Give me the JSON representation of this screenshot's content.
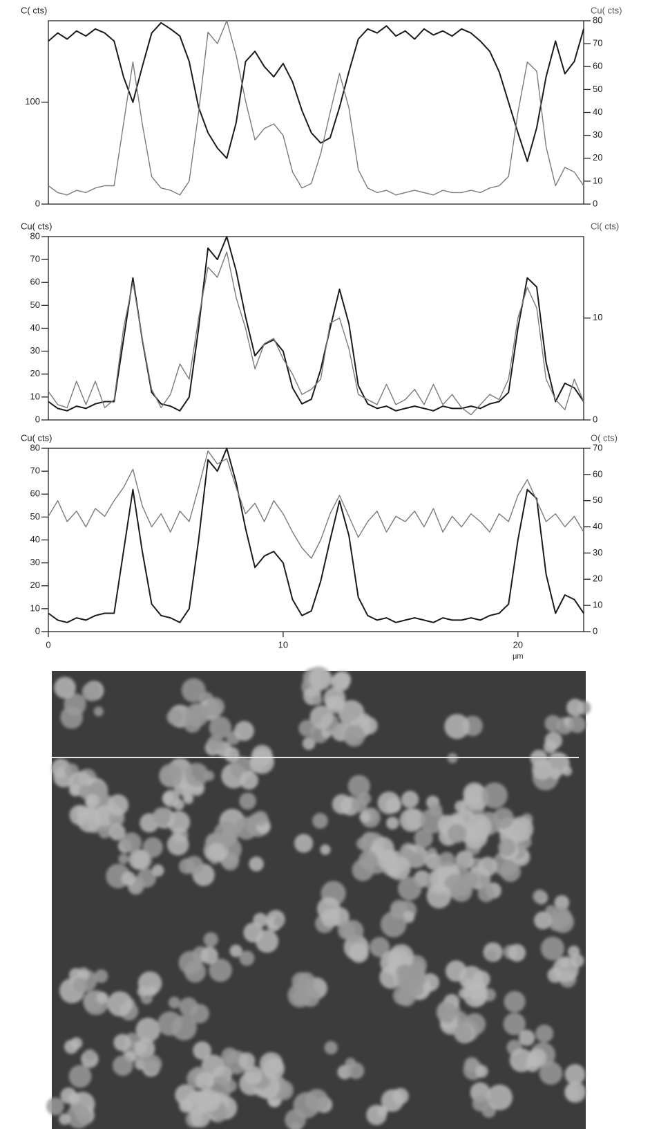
{
  "chart_data": [
    {
      "type": "line",
      "ylabel": "C( cts)",
      "y2label": "Cu( cts)",
      "x": [
        0,
        0.4,
        0.8,
        1.2,
        1.6,
        2.0,
        2.4,
        2.8,
        3.2,
        3.6,
        4.0,
        4.4,
        4.8,
        5.2,
        5.6,
        6.0,
        6.4,
        6.8,
        7.2,
        7.6,
        8.0,
        8.4,
        8.8,
        9.2,
        9.6,
        10.0,
        10.4,
        10.8,
        11.2,
        11.6,
        12.0,
        12.4,
        12.8,
        13.2,
        13.6,
        14.0,
        14.4,
        14.8,
        15.2,
        15.6,
        16.0,
        16.4,
        16.8,
        17.2,
        17.6,
        18.0,
        18.4,
        18.8,
        19.2,
        19.6,
        20.0,
        20.4,
        20.8,
        21.2,
        21.6,
        22.0,
        22.4,
        22.8
      ],
      "xlim": [
        0,
        22.8
      ],
      "ylim": [
        0,
        180
      ],
      "yticks": [
        0,
        100
      ],
      "y2lim": [
        0,
        80
      ],
      "y2ticks": [
        0,
        10,
        20,
        30,
        40,
        50,
        60,
        70,
        80
      ],
      "series": [
        {
          "color": "#1a1a1a",
          "values": [
            160,
            168,
            162,
            170,
            165,
            172,
            168,
            160,
            125,
            100,
            135,
            168,
            178,
            172,
            165,
            140,
            95,
            70,
            55,
            45,
            80,
            140,
            150,
            135,
            125,
            138,
            120,
            92,
            70,
            60,
            65,
            95,
            130,
            162,
            172,
            168,
            175,
            165,
            170,
            162,
            172,
            166,
            170,
            165,
            172,
            168,
            160,
            150,
            130,
            100,
            70,
            42,
            75,
            125,
            160,
            128,
            140,
            172
          ]
        },
        {
          "color": "#7a7a7a",
          "axis": "y2",
          "values": [
            8,
            5,
            4,
            6,
            5,
            7,
            8,
            8,
            35,
            62,
            35,
            12,
            7,
            6,
            4,
            10,
            40,
            75,
            70,
            80,
            65,
            45,
            28,
            33,
            35,
            30,
            14,
            7,
            9,
            22,
            40,
            57,
            42,
            15,
            7,
            5,
            6,
            4,
            5,
            6,
            5,
            4,
            6,
            5,
            5,
            6,
            5,
            7,
            8,
            12,
            40,
            62,
            58,
            25,
            8,
            16,
            14,
            8
          ]
        }
      ]
    },
    {
      "type": "line",
      "ylabel": "Cu( cts)",
      "y2label": "Cl( cts)",
      "x": [
        0,
        0.4,
        0.8,
        1.2,
        1.6,
        2.0,
        2.4,
        2.8,
        3.2,
        3.6,
        4.0,
        4.4,
        4.8,
        5.2,
        5.6,
        6.0,
        6.4,
        6.8,
        7.2,
        7.6,
        8.0,
        8.4,
        8.8,
        9.2,
        9.6,
        10.0,
        10.4,
        10.8,
        11.2,
        11.6,
        12.0,
        12.4,
        12.8,
        13.2,
        13.6,
        14.0,
        14.4,
        14.8,
        15.2,
        15.6,
        16.0,
        16.4,
        16.8,
        17.2,
        17.6,
        18.0,
        18.4,
        18.8,
        19.2,
        19.6,
        20.0,
        20.4,
        20.8,
        21.2,
        21.6,
        22.0,
        22.4,
        22.8
      ],
      "xlim": [
        0,
        22.8
      ],
      "ylim": [
        0,
        80
      ],
      "yticks": [
        0,
        10,
        20,
        30,
        40,
        50,
        60,
        70,
        80
      ],
      "y2lim": [
        0,
        18
      ],
      "y2ticks": [
        0,
        10
      ],
      "series": [
        {
          "color": "#1a1a1a",
          "values": [
            8,
            5,
            4,
            6,
            5,
            7,
            8,
            8,
            35,
            62,
            35,
            12,
            7,
            6,
            4,
            10,
            40,
            75,
            70,
            80,
            65,
            45,
            28,
            33,
            35,
            30,
            14,
            7,
            9,
            22,
            40,
            57,
            42,
            15,
            7,
            5,
            6,
            4,
            5,
            6,
            5,
            4,
            6,
            5,
            5,
            6,
            5,
            7,
            8,
            12,
            40,
            62,
            58,
            25,
            8,
            16,
            14,
            8
          ]
        },
        {
          "color": "#7a7a7a",
          "axis": "y2",
          "values": [
            2.8,
            1.5,
            1.2,
            3.8,
            1.5,
            3.8,
            1.2,
            2,
            9,
            13.5,
            8,
            3,
            1.2,
            2.5,
            5.5,
            4,
            10,
            15,
            14,
            16.5,
            12,
            9,
            5,
            7.5,
            8,
            6,
            4.5,
            2.5,
            3,
            4,
            9.5,
            10,
            7,
            2.5,
            2,
            1.5,
            3.5,
            1.5,
            2,
            3,
            1.5,
            3.5,
            1.5,
            2.5,
            1.2,
            0.5,
            1.5,
            2.5,
            2,
            4,
            10,
            13,
            11,
            4,
            2,
            1,
            4,
            1.8
          ]
        }
      ]
    },
    {
      "type": "line",
      "ylabel": "Cu( cts)",
      "y2label": "O( cts)",
      "xlabel": "µm",
      "x": [
        0,
        0.4,
        0.8,
        1.2,
        1.6,
        2.0,
        2.4,
        2.8,
        3.2,
        3.6,
        4.0,
        4.4,
        4.8,
        5.2,
        5.6,
        6.0,
        6.4,
        6.8,
        7.2,
        7.6,
        8.0,
        8.4,
        8.8,
        9.2,
        9.6,
        10.0,
        10.4,
        10.8,
        11.2,
        11.6,
        12.0,
        12.4,
        12.8,
        13.2,
        13.6,
        14.0,
        14.4,
        14.8,
        15.2,
        15.6,
        16.0,
        16.4,
        16.8,
        17.2,
        17.6,
        18.0,
        18.4,
        18.8,
        19.2,
        19.6,
        20.0,
        20.4,
        20.8,
        21.2,
        21.6,
        22.0,
        22.4,
        22.8
      ],
      "xlim": [
        0,
        22.8
      ],
      "xticks": [
        0,
        10,
        20
      ],
      "ylim": [
        0,
        80
      ],
      "yticks": [
        0,
        10,
        20,
        30,
        40,
        50,
        60,
        70,
        80
      ],
      "y2lim": [
        0,
        70
      ],
      "y2ticks": [
        0,
        10,
        20,
        30,
        40,
        50,
        60,
        70
      ],
      "series": [
        {
          "color": "#1a1a1a",
          "values": [
            8,
            5,
            4,
            6,
            5,
            7,
            8,
            8,
            35,
            62,
            35,
            12,
            7,
            6,
            4,
            10,
            40,
            75,
            70,
            80,
            65,
            45,
            28,
            33,
            35,
            30,
            14,
            7,
            9,
            22,
            40,
            57,
            42,
            15,
            7,
            5,
            6,
            4,
            5,
            6,
            5,
            4,
            6,
            5,
            5,
            6,
            5,
            7,
            8,
            12,
            40,
            62,
            58,
            25,
            8,
            16,
            14,
            8
          ]
        },
        {
          "color": "#7a7a7a",
          "axis": "y2",
          "values": [
            44,
            50,
            42,
            46,
            40,
            47,
            44,
            50,
            55,
            62,
            48,
            40,
            45,
            38,
            46,
            42,
            55,
            69,
            64,
            66,
            55,
            45,
            49,
            42,
            50,
            45,
            38,
            32,
            28,
            35,
            45,
            52,
            44,
            36,
            42,
            46,
            38,
            44,
            42,
            46,
            40,
            47,
            38,
            44,
            40,
            45,
            42,
            38,
            45,
            42,
            52,
            58,
            50,
            42,
            45,
            40,
            44,
            38
          ]
        }
      ]
    }
  ]
}
